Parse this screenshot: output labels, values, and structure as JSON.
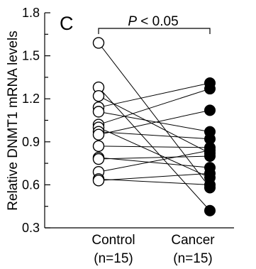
{
  "chart_data": {
    "type": "scatter",
    "subtype": "paired-dot-plot",
    "panel_label": "C",
    "ylabel": "Relative DNMT1 mRNA levels",
    "ylim": [
      0.3,
      1.8
    ],
    "yticks": [
      0.3,
      0.6,
      0.9,
      1.2,
      1.5,
      1.8
    ],
    "ytick_labels": [
      "0.3",
      "0.6",
      "0.9",
      "1.2",
      "1.5",
      "1.8"
    ],
    "categories": [
      {
        "name": "Control",
        "n_label": "(n=15)",
        "marker": "open-circle"
      },
      {
        "name": "Cancer",
        "n_label": "(n=15)",
        "marker": "filled-circle"
      }
    ],
    "significance": {
      "p_symbol": "P",
      "text": " < 0.05"
    },
    "pairs": [
      {
        "control": 1.59,
        "cancer": 0.58
      },
      {
        "control": 1.28,
        "cancer": 0.42
      },
      {
        "control": 1.22,
        "cancer": 0.82
      },
      {
        "control": 1.14,
        "cancer": 1.31
      },
      {
        "control": 1.11,
        "cancer": 0.97
      },
      {
        "control": 1.02,
        "cancer": 1.27
      },
      {
        "control": 1.0,
        "cancer": 0.65
      },
      {
        "control": 0.97,
        "cancer": 0.92
      },
      {
        "control": 0.95,
        "cancer": 1.12
      },
      {
        "control": 0.87,
        "cancer": 0.86
      },
      {
        "control": 0.79,
        "cancer": 0.72
      },
      {
        "control": 0.78,
        "cancer": 0.8
      },
      {
        "control": 0.69,
        "cancer": 0.84
      },
      {
        "control": 0.64,
        "cancer": 0.6
      },
      {
        "control": 0.63,
        "cancer": 0.68
      }
    ]
  }
}
